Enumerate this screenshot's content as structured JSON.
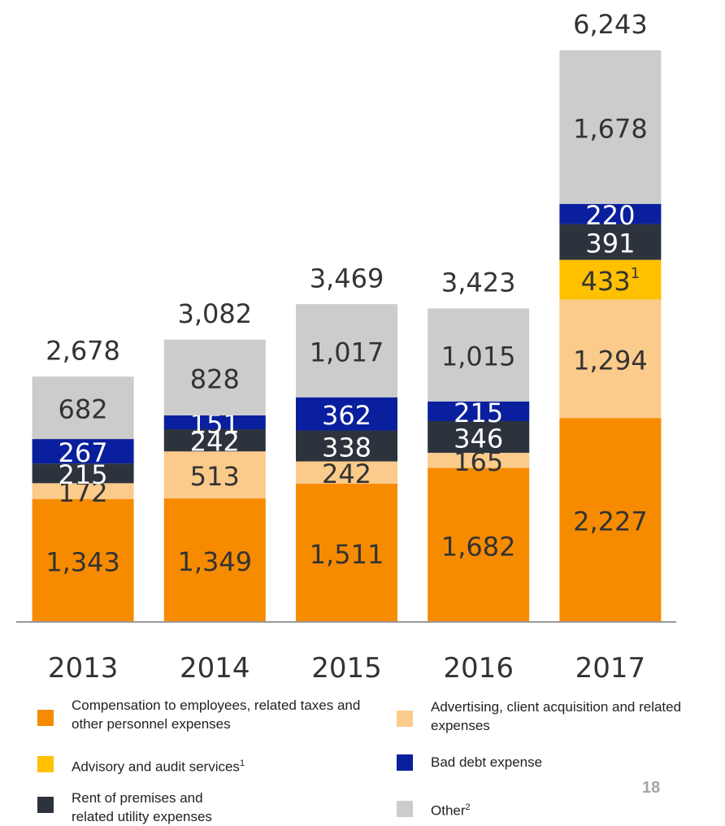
{
  "chart_data": {
    "type": "stacked_bar",
    "categories": [
      "2013",
      "2014",
      "2015",
      "2016",
      "2017"
    ],
    "series": [
      {
        "name": "Compensation to employees, related taxes and other personnel expenses",
        "color": "#f78b00",
        "label_color": "#333333",
        "values": [
          1343,
          1349,
          1511,
          1682,
          2227
        ],
        "value_labels": [
          "1,343",
          "1,349",
          "1,511",
          "1,682",
          "2,227"
        ]
      },
      {
        "name": "Advertising, client acquisition and related expenses",
        "color": "#fbcb8b",
        "label_color": "#333333",
        "values": [
          172,
          513,
          242,
          165,
          1294
        ],
        "value_labels": [
          "172",
          "513",
          "242",
          "165",
          "1,294"
        ]
      },
      {
        "name": "Advisory and audit services",
        "note": "1",
        "color": "#ffc000",
        "label_color": "#333333",
        "values": [
          null,
          null,
          null,
          null,
          433
        ],
        "value_labels": [
          null,
          null,
          null,
          null,
          "433"
        ],
        "value_notes": [
          null,
          null,
          null,
          null,
          "1"
        ]
      },
      {
        "name": "Rent of premises and related utility expenses",
        "color": "#2d333d",
        "label_color": "#ffffff",
        "values": [
          215,
          242,
          338,
          346,
          391
        ],
        "value_labels": [
          "215",
          "242",
          "338",
          "346",
          "391"
        ]
      },
      {
        "name": "Bad debt expense",
        "color": "#0a1f9e",
        "label_color": "#ffffff",
        "values": [
          267,
          151,
          362,
          215,
          220
        ],
        "value_labels": [
          "267",
          "151",
          "362",
          "215",
          "220"
        ]
      },
      {
        "name": "Other",
        "note": "2",
        "color": "#cccccc",
        "label_color": "#333333",
        "values": [
          682,
          828,
          1017,
          1015,
          1678
        ],
        "value_labels": [
          "682",
          "828",
          "1,017",
          "1,015",
          "1,678"
        ]
      }
    ],
    "totals": [
      2678,
      3082,
      3469,
      3423,
      6243
    ],
    "total_labels": [
      "2,678",
      "3,082",
      "3,469",
      "3,423",
      "6,243"
    ],
    "ylim": [
      0,
      6250
    ],
    "page_number": "18"
  }
}
